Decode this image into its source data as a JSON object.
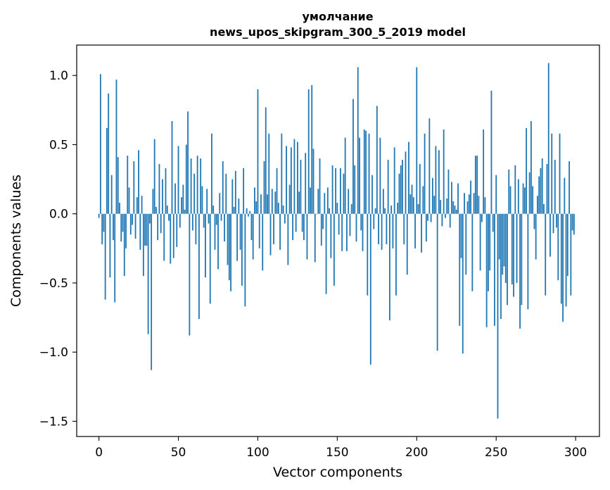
{
  "chart_data": {
    "type": "bar",
    "title_line1": "умолчание",
    "title_line2": "news_upos_skipgram_300_5_2019 model",
    "xlabel": "Vector components",
    "ylabel": "Components values",
    "xlim": [
      -14,
      315
    ],
    "ylim": [
      -1.61,
      1.22
    ],
    "xticks": [
      0,
      50,
      100,
      150,
      200,
      250,
      300
    ],
    "xtick_labels": [
      "0",
      "50",
      "100",
      "150",
      "200",
      "250",
      "300"
    ],
    "yticks": [
      1.0,
      0.5,
      0.0,
      -0.5,
      -1.0,
      -1.5
    ],
    "ytick_labels": [
      "1.0",
      "0.5",
      "0.0",
      "−0.5",
      "−1.0",
      "−1.5"
    ],
    "bar_color": "#1f77b4",
    "bar_count": 300,
    "values": [
      -0.03,
      1.01,
      -0.22,
      -0.13,
      -0.62,
      0.62,
      0.87,
      -0.46,
      0.28,
      -0.19,
      -0.64,
      0.97,
      0.41,
      0.08,
      -0.2,
      -0.13,
      -0.45,
      -0.25,
      0.42,
      0.19,
      -0.15,
      -0.08,
      0.38,
      -0.18,
      0.12,
      0.46,
      -0.26,
      0.13,
      -0.45,
      -0.23,
      -0.23,
      -0.87,
      -0.07,
      -1.13,
      0.18,
      0.54,
      0.05,
      -0.19,
      0.36,
      -0.14,
      0.25,
      -0.34,
      0.33,
      0.06,
      -0.05,
      -0.36,
      0.67,
      -0.32,
      0.22,
      -0.24,
      0.49,
      -0.1,
      0.12,
      0.21,
      0.03,
      0.5,
      0.74,
      -0.88,
      0.4,
      -0.12,
      0.29,
      -0.22,
      0.42,
      -0.76,
      0.4,
      0.2,
      -0.1,
      -0.46,
      0.18,
      -0.07,
      -0.65,
      0.58,
      0.06,
      -0.26,
      -0.08,
      -0.4,
      0.15,
      -0.05,
      0.38,
      -0.2,
      0.29,
      -0.37,
      -0.48,
      -0.56,
      0.25,
      0.05,
      0.31,
      -0.34,
      0.11,
      -0.26,
      -0.52,
      0.33,
      -0.67,
      0.04,
      -0.02,
      0.02,
      -0.19,
      -0.33,
      0.19,
      0.09,
      0.9,
      -0.25,
      0.14,
      -0.41,
      0.38,
      0.77,
      0.14,
      0.58,
      -0.3,
      0.18,
      -0.22,
      0.16,
      0.33,
      0.08,
      -0.26,
      0.58,
      0.06,
      -0.07,
      0.49,
      -0.37,
      0.21,
      0.48,
      -0.19,
      0.54,
      -0.13,
      0.52,
      0.16,
      0.39,
      -0.13,
      -0.19,
      0.44,
      -0.33,
      0.9,
      0.19,
      0.93,
      0.47,
      -0.35,
      0.0,
      0.18,
      0.4,
      -0.23,
      -0.11,
      0.15,
      -0.58,
      0.19,
      0.04,
      -0.32,
      0.35,
      -0.52,
      0.33,
      0.08,
      -0.15,
      0.33,
      -0.27,
      0.29,
      0.55,
      -0.27,
      0.18,
      -0.16,
      0.07,
      0.83,
      0.35,
      -0.2,
      1.06,
      0.55,
      -0.12,
      -0.27,
      0.61,
      0.6,
      -0.59,
      0.58,
      -1.09,
      0.28,
      -0.11,
      0.04,
      0.78,
      -0.22,
      0.55,
      -0.26,
      0.18,
      0.04,
      -0.22,
      0.39,
      -0.77,
      0.06,
      -0.25,
      0.48,
      -0.59,
      0.08,
      0.29,
      0.35,
      0.39,
      -0.22,
      0.45,
      -0.44,
      0.52,
      0.14,
      0.21,
      0.12,
      -0.25,
      1.06,
      0.07,
      0.36,
      -0.28,
      0.2,
      0.58,
      -0.2,
      -0.05,
      0.69,
      -0.06,
      0.26,
      0.13,
      0.49,
      -0.99,
      0.46,
      0.1,
      -0.09,
      0.61,
      -0.03,
      0.11,
      0.32,
      -0.1,
      0.23,
      0.09,
      0.06,
      0.03,
      0.22,
      -0.81,
      -0.32,
      -1.01,
      0.15,
      -0.44,
      0.09,
      0.14,
      0.24,
      -0.56,
      0.15,
      0.42,
      0.42,
      0.13,
      -0.41,
      -0.06,
      0.61,
      0.12,
      -0.82,
      -0.56,
      -0.41,
      0.89,
      -0.13,
      -0.81,
      0.28,
      -1.48,
      -0.33,
      -0.76,
      -0.44,
      -0.38,
      -0.5,
      -0.66,
      0.32,
      0.2,
      -0.51,
      -0.6,
      0.35,
      -0.5,
      0.25,
      -0.83,
      -0.66,
      0.22,
      0.19,
      0.62,
      -0.69,
      0.3,
      0.67,
      0.2,
      -0.11,
      -0.33,
      0.13,
      0.27,
      0.33,
      0.4,
      0.07,
      -0.59,
      0.36,
      1.09,
      -0.31,
      0.58,
      -0.14,
      0.39,
      -0.1,
      -0.48,
      0.58,
      -0.65,
      -0.78,
      0.26,
      -0.67,
      -0.45,
      0.38,
      -0.59,
      -0.12,
      -0.15
    ]
  }
}
